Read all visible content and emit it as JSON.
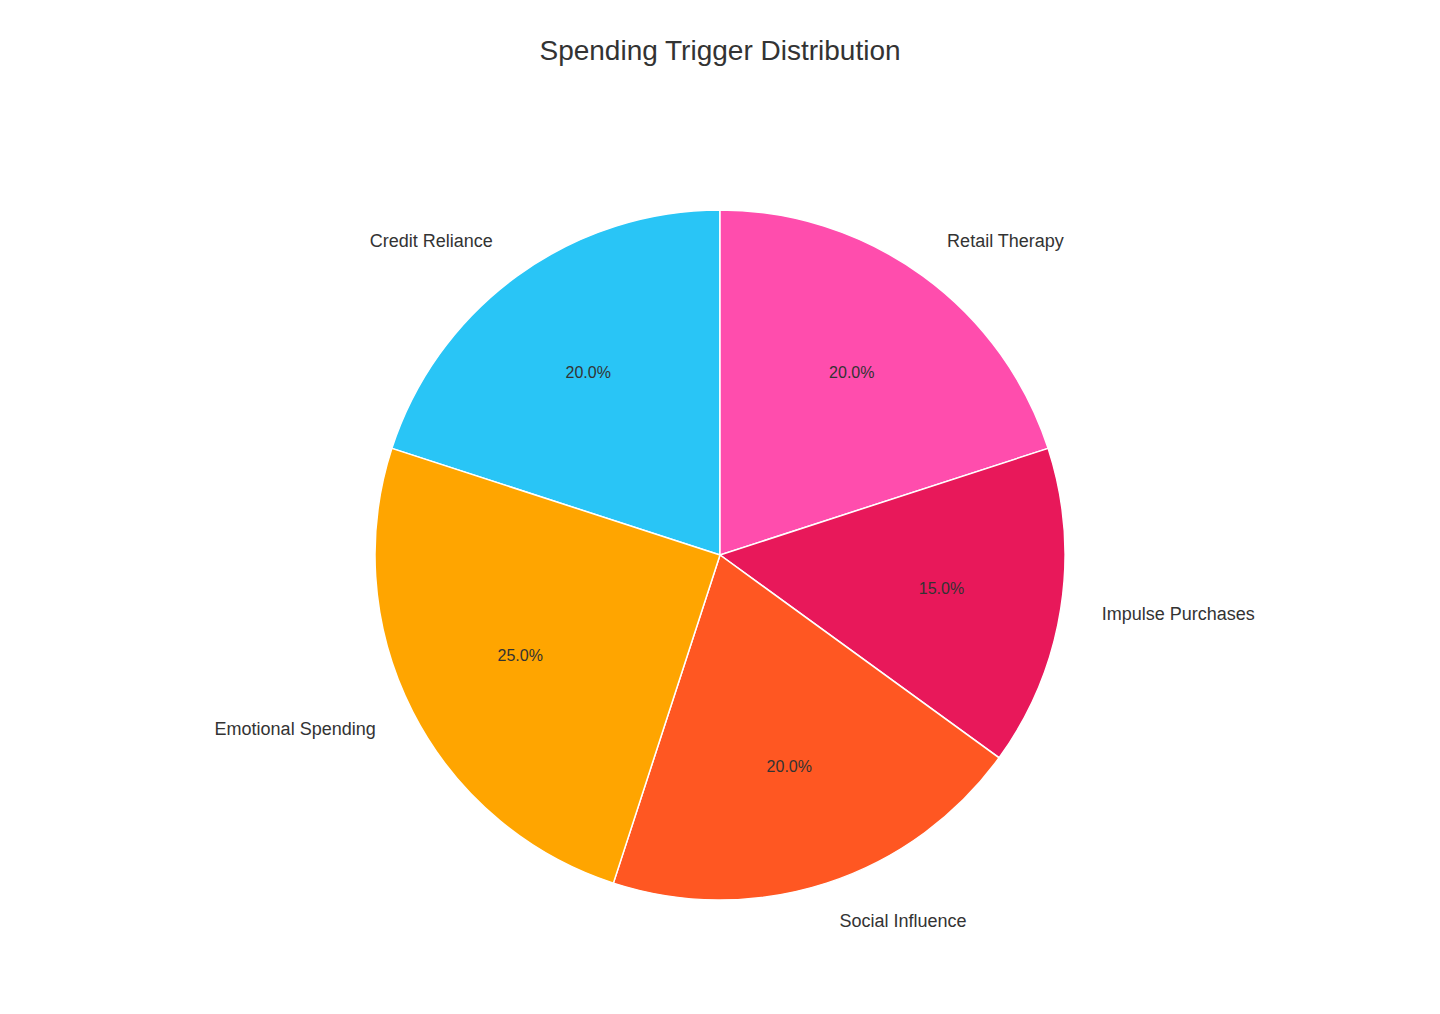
{
  "chart_data": {
    "type": "pie",
    "title": "Spending Trigger Distribution",
    "categories": [
      "Credit Reliance",
      "Retail Therapy",
      "Impulse Purchases",
      "Social Influence",
      "Emotional Spending"
    ],
    "values": [
      20.0,
      20.0,
      15.0,
      20.0,
      25.0
    ],
    "value_labels": [
      "20.0%",
      "20.0%",
      "15.0%",
      "20.0%",
      "25.0%"
    ],
    "colors": [
      "#29C5F6",
      "#FF4DAD",
      "#E8185A",
      "#FF5722",
      "#FFA500"
    ],
    "data_labels": true
  }
}
